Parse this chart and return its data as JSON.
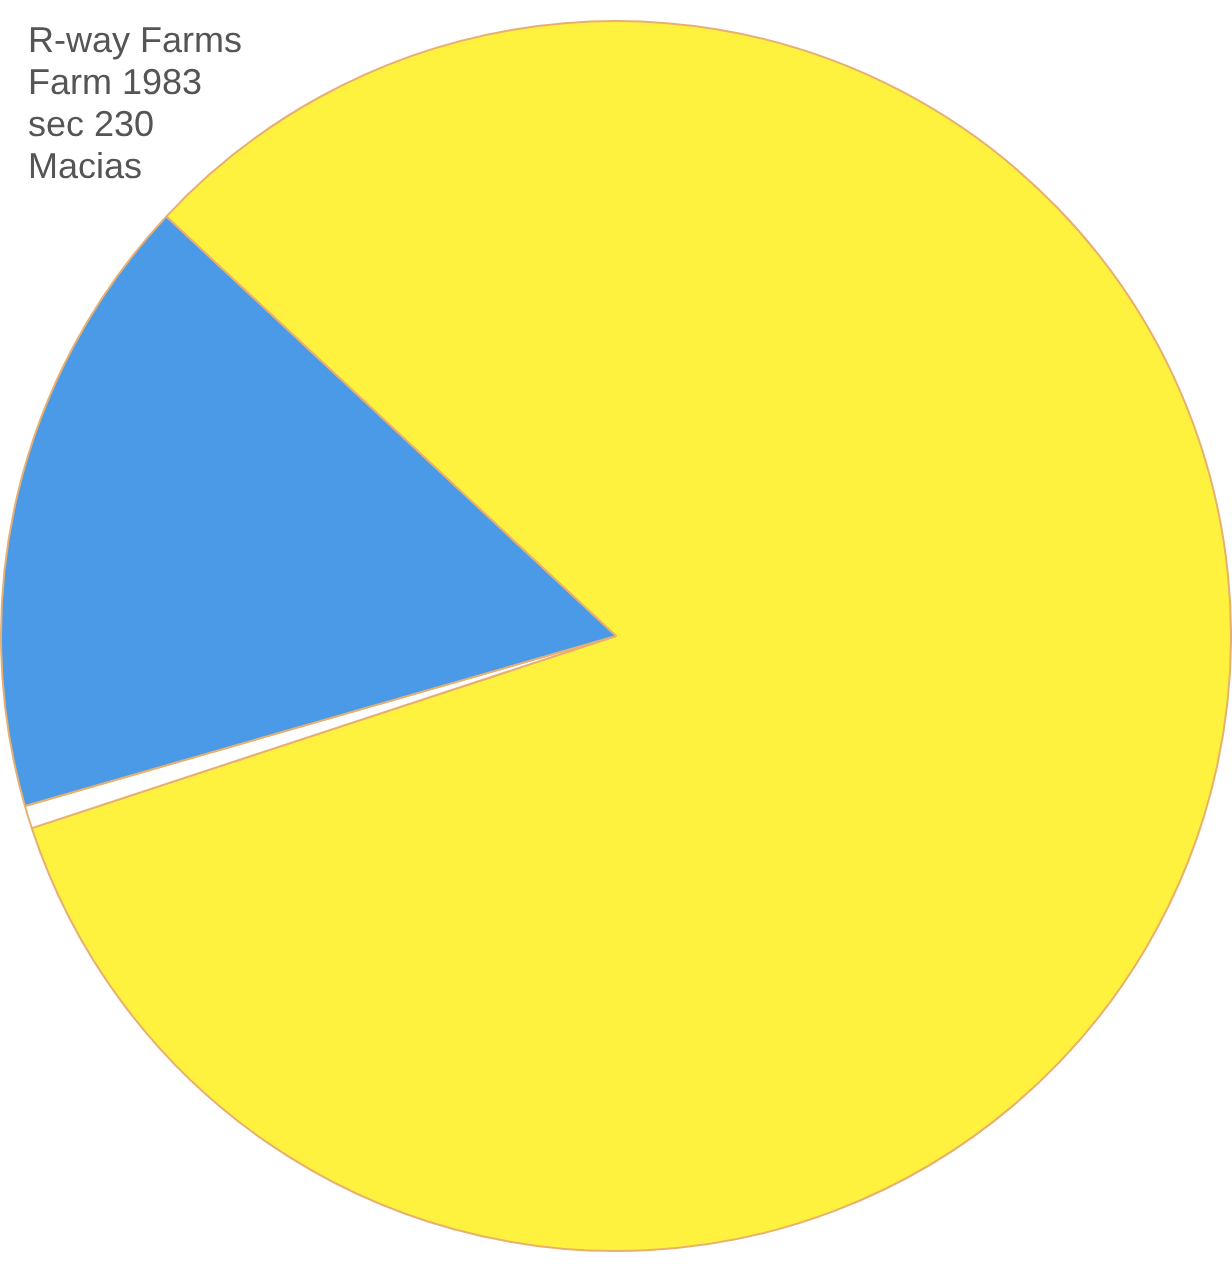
{
  "chart_data": {
    "type": "pie",
    "title": "R-way Farms\nFarm 1983\nsec 230\nMacias",
    "categories": [
      null,
      null,
      null
    ],
    "values": [
      83,
      0.6,
      16.4
    ],
    "colors": [
      "#fff23f",
      "#ffffff",
      "#4a9ae8"
    ]
  }
}
